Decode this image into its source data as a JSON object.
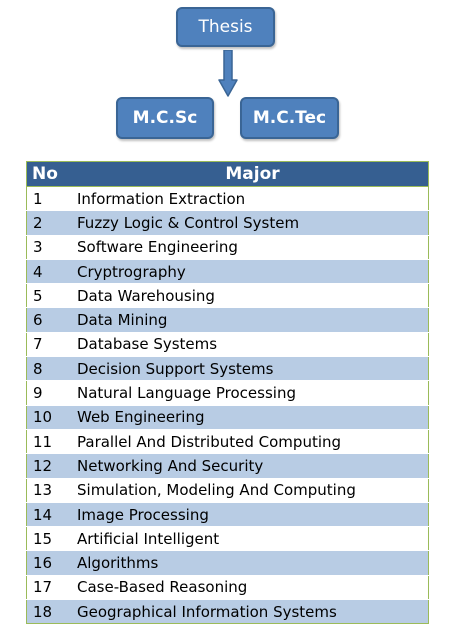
{
  "diagram": {
    "top_node": "Thesis",
    "children": [
      "M.C.Sc",
      "M.C.Tec"
    ]
  },
  "table": {
    "headers": [
      "No",
      "Major"
    ],
    "rows": [
      {
        "no": "1",
        "major": "Information Extraction"
      },
      {
        "no": "2",
        "major": "Fuzzy Logic & Control System"
      },
      {
        "no": "3",
        "major": "Software Engineering"
      },
      {
        "no": "4",
        "major": "Cryptrography"
      },
      {
        "no": "5",
        "major": "Data Warehousing"
      },
      {
        "no": "6",
        "major": "Data Mining"
      },
      {
        "no": "7",
        "major": "Database Systems"
      },
      {
        "no": "8",
        "major": "Decision Support Systems"
      },
      {
        "no": "9",
        "major": "Natural Language Processing"
      },
      {
        "no": "10",
        "major": "Web Engineering"
      },
      {
        "no": "11",
        "major": "Parallel And Distributed Computing"
      },
      {
        "no": "12",
        "major": "Networking And Security"
      },
      {
        "no": "13",
        "major": "Simulation, Modeling And Computing"
      },
      {
        "no": "14",
        "major": "Image Processing"
      },
      {
        "no": "15",
        "major": "Artificial Intelligent"
      },
      {
        "no": "16",
        "major": "Algorithms"
      },
      {
        "no": "17",
        "major": "Case-Based Reasoning"
      },
      {
        "no": "18",
        "major": "Geographical Information Systems"
      }
    ]
  },
  "colors": {
    "node_fill": "#4f81bd",
    "header_fill": "#365f91",
    "row_band": "#b8cce4",
    "table_border": "#9bbb59"
  }
}
